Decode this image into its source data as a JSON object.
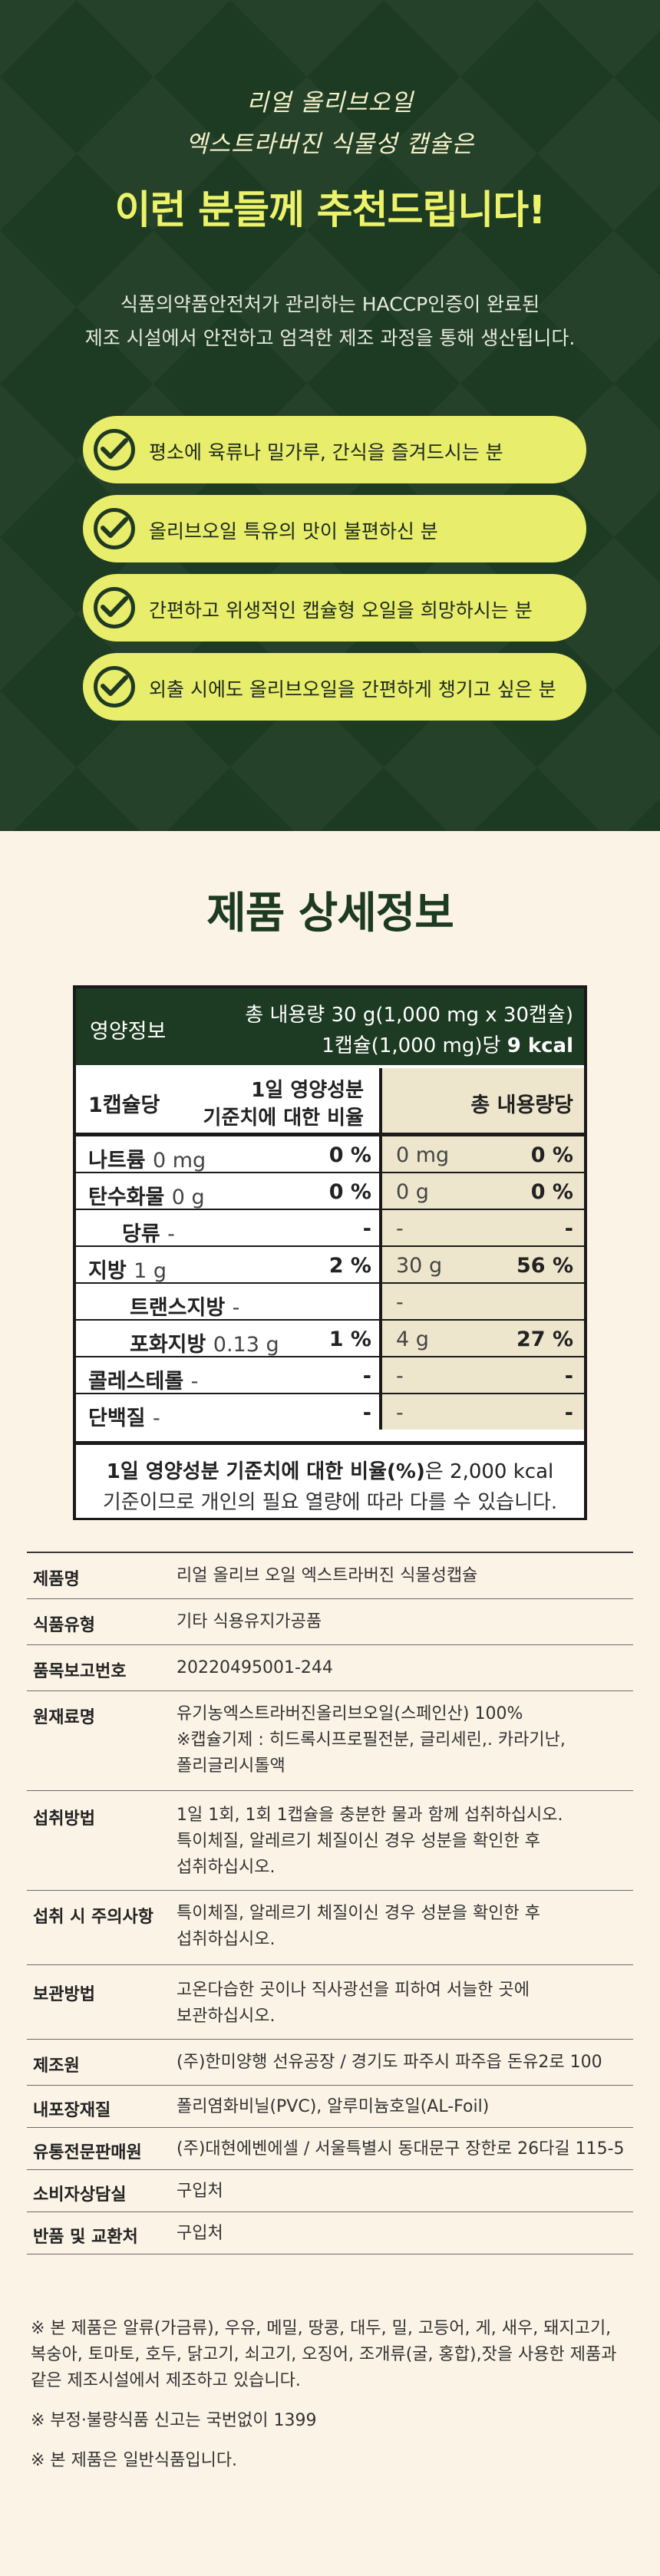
{
  "hero": {
    "script_line1": "리얼 올리브오일",
    "script_line2": "엑스트라버진 식물성 캡슐은",
    "title": "이런 분들께 추천드립니다!",
    "desc_line1": "식품의약품안전처가 관리하는 HACCP인증이 완료된",
    "desc_line2": "제조 시설에서 안전하고 엄격한 제조 과정을 통해 생산됩니다.",
    "recommend": [
      "평소에 육류나 밀가루, 간식을 즐겨드시는 분",
      "올리브오일 특유의 맛이 불편하신 분",
      "간편하고 위생적인 캡슐형 오일을 희망하시는 분",
      "외출 시에도 올리브오일을 간편하게 챙기고 싶은 분"
    ],
    "colors": {
      "background": "#1d3a22",
      "pill": "#e9ed6c",
      "title": "#ecf26a"
    }
  },
  "info": {
    "title": "제품 상세정보"
  },
  "nutrition": {
    "label": "영양정보",
    "total_line1": "총 내용량 30 g(1,000 mg x 30캡슐)",
    "total_line2_prefix": "1캡슐(1,000 mg)당",
    "total_line2_kcal": "9 kcal",
    "col_serving": "1캡슐당",
    "col_daily_1": "1일 영양성분",
    "col_daily_2": "기준치에 대한 비율",
    "col_total": "총 내용량당",
    "rows": [
      {
        "name": "나트륨",
        "amount": "0 mg",
        "pct": "0 %",
        "total_amount": "0 mg",
        "total_pct": "0 %"
      },
      {
        "name": "탄수화물",
        "amount": "0 g",
        "pct": "0 %",
        "total_amount": "0 g",
        "total_pct": "0 %"
      },
      {
        "name": "당류",
        "amount": "-",
        "pct": "-",
        "total_amount": "-",
        "total_pct": "-"
      },
      {
        "name": "지방",
        "amount": "1 g",
        "pct": "2 %",
        "total_amount": "30 g",
        "total_pct": "56 %"
      },
      {
        "name": "트랜스지방",
        "amount": "-",
        "pct": "",
        "total_amount": "-",
        "total_pct": ""
      },
      {
        "name": "포화지방",
        "amount": "0.13 g",
        "pct": "1 %",
        "total_amount": "4 g",
        "total_pct": "27 %"
      },
      {
        "name": "콜레스테롤",
        "amount": "-",
        "pct": "-",
        "total_amount": "-",
        "total_pct": "-"
      },
      {
        "name": "단백질",
        "amount": "-",
        "pct": "-",
        "total_amount": "-",
        "total_pct": "-"
      }
    ],
    "footer_bold": "1일 영양성분 기준치에 대한 비율(%)",
    "footer_rest": "은 2,000 kcal",
    "footer_line2": "기준이므로 개인의 필요 열량에 따라 다를 수 있습니다."
  },
  "details": [
    {
      "key": "제품명",
      "lines": [
        "리얼 올리브 오일 엑스트라버진 식물성캡슐"
      ]
    },
    {
      "key": "식품유형",
      "lines": [
        "기타 식용유지가공품"
      ]
    },
    {
      "key": "품목보고번호",
      "lines": [
        "20220495001-244"
      ]
    },
    {
      "key": "원재료명",
      "lines": [
        "유기농엑스트라버진올리브오일(스페인산) 100%",
        "※캡슐기제 : 히드록시프로필전분, 글리세린,. 카라기난,",
        "폴리글리시톨액"
      ]
    },
    {
      "key": "섭취방법",
      "lines": [
        "1일 1회, 1회 1캡슐을 충분한 물과 함께 섭취하십시오.",
        "특이체질, 알레르기 체질이신 경우 성분을 확인한 후",
        "섭취하십시오."
      ]
    },
    {
      "key": "섭취 시 주의사항",
      "lines": [
        "특이체질, 알레르기 체질이신 경우 성분을 확인한 후",
        "섭취하십시오."
      ]
    },
    {
      "key": "보관방법",
      "lines": [
        "고온다습한 곳이나 직사광선을 피하여 서늘한 곳에",
        "보관하십시오."
      ]
    },
    {
      "key": "제조원",
      "lines": [
        "(주)한미양행 선유공장 / 경기도 파주시 파주읍 돈유2로 100"
      ]
    },
    {
      "key": "내포장재질",
      "lines": [
        "폴리염화비닐(PVC), 알루미늄호일(AL-Foil)"
      ]
    },
    {
      "key": "유통전문판매원",
      "lines": [
        "(주)대현에벤에셀 / 서울특별시 동대문구 장한로 26다길 115-5"
      ]
    },
    {
      "key": "소비자상담실",
      "lines": [
        "구입처"
      ]
    },
    {
      "key": "반품 및 교환처",
      "lines": [
        "구입처"
      ]
    }
  ],
  "notes": [
    [
      "※ 본 제품은 알류(가금류), 우유, 메밀, 땅콩, 대두, 밀, 고등어, 게, 새우, 돼지고기,",
      "복숭아, 토마토, 호두, 닭고기, 쇠고기, 오징어, 조개류(굴, 홍합),잣을 사용한 제품과",
      "같은 제조시설에서 제조하고 있습니다."
    ],
    [
      "※ 부정·불량식품 신고는 국번없이 1399"
    ],
    [
      "※ 본 제품은 일반식품입니다."
    ]
  ]
}
